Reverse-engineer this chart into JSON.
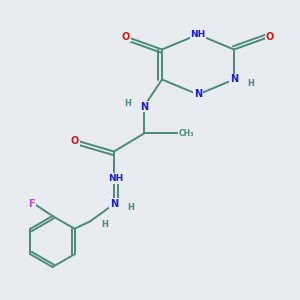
{
  "bg_color": "#e8ecf0",
  "atom_colors": {
    "C": "#4a8a7a",
    "N": "#1a1acc",
    "O": "#cc1a1a",
    "H": "#4a8a7a",
    "F": "#cc44cc",
    "NH": "#1a1acc"
  },
  "bond_color": "#4a8a7a",
  "bond_width": 1.4
}
